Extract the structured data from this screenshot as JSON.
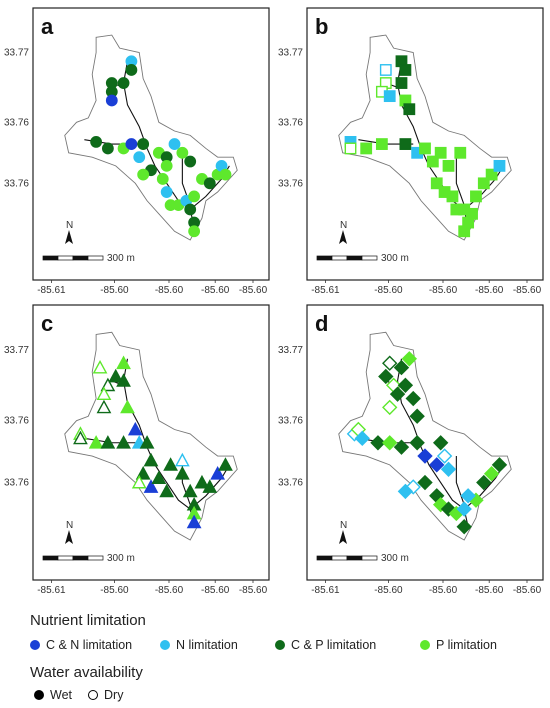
{
  "panels": [
    {
      "label": "a",
      "marker": "circle"
    },
    {
      "label": "b",
      "marker": "square"
    },
    {
      "label": "c",
      "marker": "triangle"
    },
    {
      "label": "d",
      "marker": "diamond"
    }
  ],
  "y_ticks": [
    "33.77",
    "33.76",
    "33.76"
  ],
  "x_ticks": [
    "-85.61",
    "-85.60",
    "-85.60",
    "-85.60",
    "-85.60"
  ],
  "scalebar_label": "300 m",
  "north_label": "N",
  "legend": {
    "nutrient_title": "Nutrient limitation",
    "nutrient_items": [
      {
        "label": "C & N limitation",
        "color": "#1a3fd6"
      },
      {
        "label": "N limitation",
        "color": "#2ec0f0"
      },
      {
        "label": "C & P limitation",
        "color": "#0f6b1a"
      },
      {
        "label": "P limitation",
        "color": "#5ee82c"
      }
    ],
    "water_title": "Water availability",
    "water_items": [
      {
        "label": "Wet",
        "style": "filled"
      },
      {
        "label": "Dry",
        "style": "open"
      }
    ]
  },
  "colors": {
    "CN": "#1a3fd6",
    "N": "#2ec0f0",
    "CP": "#0f6b1a",
    "P": "#5ee82c"
  },
  "map_data": [
    {
      "panel": "a",
      "points": [
        [
          "CP",
          0.36,
          0.28,
          1
        ],
        [
          "N",
          0.4,
          0.18,
          1
        ],
        [
          "CP",
          0.3,
          0.28,
          1
        ],
        [
          "CP",
          0.3,
          0.32,
          1
        ],
        [
          "CN",
          0.3,
          0.36,
          1
        ],
        [
          "CP",
          0.4,
          0.22,
          1
        ],
        [
          "CP",
          0.22,
          0.55,
          1
        ],
        [
          "CP",
          0.28,
          0.58,
          1
        ],
        [
          "P",
          0.36,
          0.58,
          1
        ],
        [
          "CN",
          0.4,
          0.56,
          1
        ],
        [
          "CP",
          0.46,
          0.56,
          1
        ],
        [
          "N",
          0.44,
          0.62,
          1
        ],
        [
          "P",
          0.54,
          0.6,
          1
        ],
        [
          "CP",
          0.5,
          0.68,
          1
        ],
        [
          "P",
          0.46,
          0.7,
          1
        ],
        [
          "CP",
          0.58,
          0.62,
          1
        ],
        [
          "P",
          0.58,
          0.66,
          1
        ],
        [
          "P",
          0.56,
          0.72,
          1
        ],
        [
          "N",
          0.58,
          0.78,
          1
        ],
        [
          "P",
          0.6,
          0.84,
          1
        ],
        [
          "P",
          0.64,
          0.84,
          1
        ],
        [
          "N",
          0.68,
          0.82,
          1
        ],
        [
          "CP",
          0.7,
          0.86,
          1
        ],
        [
          "P",
          0.72,
          0.8,
          1
        ],
        [
          "P",
          0.76,
          0.72,
          1
        ],
        [
          "CP",
          0.8,
          0.74,
          1
        ],
        [
          "P",
          0.84,
          0.7,
          1
        ],
        [
          "N",
          0.86,
          0.66,
          1
        ],
        [
          "P",
          0.66,
          0.6,
          1
        ],
        [
          "CP",
          0.7,
          0.64,
          1
        ],
        [
          "N",
          0.62,
          0.56,
          1
        ],
        [
          "CP",
          0.72,
          0.92,
          1
        ],
        [
          "P",
          0.72,
          0.96,
          1
        ],
        [
          "P",
          0.88,
          0.7,
          1
        ]
      ]
    },
    {
      "panel": "b",
      "points": [
        [
          "N",
          0.3,
          0.22,
          0
        ],
        [
          "P",
          0.3,
          0.28,
          0
        ],
        [
          "P",
          0.28,
          0.32,
          0
        ],
        [
          "N",
          0.32,
          0.34,
          1
        ],
        [
          "CP",
          0.38,
          0.18,
          1
        ],
        [
          "CP",
          0.4,
          0.22,
          1
        ],
        [
          "CP",
          0.38,
          0.28,
          1
        ],
        [
          "P",
          0.4,
          0.36,
          1
        ],
        [
          "CP",
          0.42,
          0.4,
          1
        ],
        [
          "N",
          0.12,
          0.55,
          1
        ],
        [
          "P",
          0.12,
          0.58,
          0
        ],
        [
          "P",
          0.2,
          0.58,
          1
        ],
        [
          "P",
          0.28,
          0.56,
          1
        ],
        [
          "CP",
          0.4,
          0.56,
          1
        ],
        [
          "N",
          0.46,
          0.6,
          1
        ],
        [
          "P",
          0.5,
          0.58,
          1
        ],
        [
          "P",
          0.54,
          0.64,
          1
        ],
        [
          "P",
          0.58,
          0.6,
          1
        ],
        [
          "P",
          0.56,
          0.74,
          1
        ],
        [
          "P",
          0.6,
          0.78,
          1
        ],
        [
          "P",
          0.64,
          0.8,
          1
        ],
        [
          "P",
          0.66,
          0.86,
          1
        ],
        [
          "P",
          0.7,
          0.86,
          1
        ],
        [
          "P",
          0.74,
          0.88,
          1
        ],
        [
          "P",
          0.76,
          0.8,
          1
        ],
        [
          "P",
          0.8,
          0.74,
          1
        ],
        [
          "P",
          0.84,
          0.7,
          1
        ],
        [
          "N",
          0.88,
          0.66,
          1
        ],
        [
          "P",
          0.72,
          0.92,
          1
        ],
        [
          "P",
          0.7,
          0.96,
          1
        ],
        [
          "P",
          0.68,
          0.6,
          1
        ],
        [
          "P",
          0.62,
          0.66,
          1
        ]
      ]
    },
    {
      "panel": "c",
      "points": [
        [
          "P",
          0.24,
          0.22,
          0
        ],
        [
          "CP",
          0.28,
          0.3,
          0
        ],
        [
          "P",
          0.26,
          0.34,
          0
        ],
        [
          "CP",
          0.26,
          0.4,
          0
        ],
        [
          "CP",
          0.32,
          0.26,
          1
        ],
        [
          "P",
          0.36,
          0.2,
          1
        ],
        [
          "CP",
          0.36,
          0.28,
          1
        ],
        [
          "P",
          0.38,
          0.4,
          1
        ],
        [
          "CN",
          0.42,
          0.5,
          1
        ],
        [
          "N",
          0.44,
          0.56,
          1
        ],
        [
          "P",
          0.14,
          0.52,
          0
        ],
        [
          "CP",
          0.14,
          0.54,
          0
        ],
        [
          "P",
          0.22,
          0.56,
          1
        ],
        [
          "CP",
          0.28,
          0.56,
          1
        ],
        [
          "CP",
          0.36,
          0.56,
          1
        ],
        [
          "CP",
          0.48,
          0.56,
          1
        ],
        [
          "CP",
          0.5,
          0.64,
          1
        ],
        [
          "CP",
          0.46,
          0.7,
          1
        ],
        [
          "P",
          0.44,
          0.74,
          0
        ],
        [
          "CN",
          0.5,
          0.76,
          1
        ],
        [
          "CP",
          0.54,
          0.72,
          1
        ],
        [
          "CP",
          0.58,
          0.78,
          1
        ],
        [
          "CP",
          0.6,
          0.66,
          1
        ],
        [
          "N",
          0.66,
          0.64,
          0
        ],
        [
          "CP",
          0.66,
          0.7,
          1
        ],
        [
          "CP",
          0.7,
          0.78,
          1
        ],
        [
          "CP",
          0.72,
          0.84,
          1
        ],
        [
          "P",
          0.72,
          0.88,
          1
        ],
        [
          "CN",
          0.72,
          0.92,
          1
        ],
        [
          "CP",
          0.76,
          0.74,
          1
        ],
        [
          "CP",
          0.8,
          0.76,
          1
        ],
        [
          "CN",
          0.84,
          0.7,
          1
        ],
        [
          "CP",
          0.88,
          0.66,
          1
        ]
      ]
    },
    {
      "panel": "d",
      "points": [
        [
          "CP",
          0.32,
          0.2,
          0
        ],
        [
          "CP",
          0.3,
          0.26,
          1
        ],
        [
          "P",
          0.34,
          0.3,
          0
        ],
        [
          "CP",
          0.36,
          0.34,
          1
        ],
        [
          "P",
          0.32,
          0.4,
          0
        ],
        [
          "CP",
          0.38,
          0.22,
          1
        ],
        [
          "CP",
          0.4,
          0.3,
          1
        ],
        [
          "P",
          0.42,
          0.18,
          1
        ],
        [
          "CP",
          0.44,
          0.36,
          1
        ],
        [
          "CP",
          0.46,
          0.44,
          1
        ],
        [
          "N",
          0.14,
          0.52,
          0
        ],
        [
          "P",
          0.16,
          0.5,
          0
        ],
        [
          "N",
          0.18,
          0.54,
          1
        ],
        [
          "CP",
          0.26,
          0.56,
          1
        ],
        [
          "P",
          0.32,
          0.56,
          1
        ],
        [
          "CP",
          0.38,
          0.58,
          1
        ],
        [
          "CP",
          0.46,
          0.56,
          1
        ],
        [
          "CN",
          0.5,
          0.62,
          1
        ],
        [
          "CN",
          0.56,
          0.66,
          1
        ],
        [
          "N",
          0.6,
          0.62,
          0
        ],
        [
          "CP",
          0.58,
          0.56,
          1
        ],
        [
          "N",
          0.62,
          0.68,
          1
        ],
        [
          "N",
          0.44,
          0.76,
          0
        ],
        [
          "N",
          0.4,
          0.78,
          1
        ],
        [
          "CP",
          0.5,
          0.74,
          1
        ],
        [
          "CP",
          0.56,
          0.8,
          1
        ],
        [
          "P",
          0.58,
          0.84,
          1
        ],
        [
          "CP",
          0.62,
          0.86,
          1
        ],
        [
          "P",
          0.66,
          0.88,
          1
        ],
        [
          "N",
          0.7,
          0.86,
          1
        ],
        [
          "P",
          0.76,
          0.82,
          1
        ],
        [
          "CP",
          0.8,
          0.74,
          1
        ],
        [
          "P",
          0.84,
          0.7,
          1
        ],
        [
          "CP",
          0.88,
          0.66,
          1
        ],
        [
          "CP",
          0.7,
          0.94,
          1
        ],
        [
          "N",
          0.72,
          0.8,
          1
        ]
      ]
    }
  ]
}
